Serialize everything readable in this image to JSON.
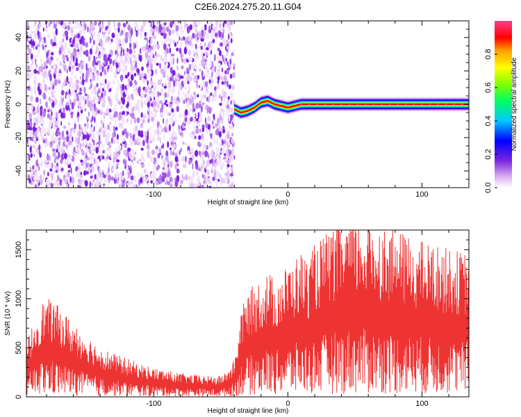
{
  "title": "C2E6.2024.275.20.11.G04",
  "chart_data": [
    {
      "type": "heatmap",
      "xlabel": "Height of straight line (km)",
      "ylabel": "Frequency (Hz)",
      "xlim": [
        -195,
        135
      ],
      "ylim": [
        -50,
        50
      ],
      "x_ticks": [
        -100,
        0,
        100
      ],
      "y_ticks": [
        -40,
        -20,
        0,
        20,
        40
      ],
      "noise_region_x": [
        -195,
        -40
      ],
      "signal_track": [
        {
          "x": -40,
          "y": -3
        },
        {
          "x": -35,
          "y": -5
        },
        {
          "x": -30,
          "y": -4
        },
        {
          "x": -25,
          "y": -2
        },
        {
          "x": -20,
          "y": 1
        },
        {
          "x": -15,
          "y": 2
        },
        {
          "x": -10,
          "y": 0
        },
        {
          "x": -5,
          "y": -1
        },
        {
          "x": 0,
          "y": -2
        },
        {
          "x": 5,
          "y": -1
        },
        {
          "x": 10,
          "y": 0
        },
        {
          "x": 135,
          "y": 0
        }
      ],
      "colorbar": {
        "label": "Normalized spectral amplitude",
        "range": [
          0,
          1
        ],
        "ticks": [
          "0.0",
          "0.2",
          "0.4",
          "0.6",
          "0.8"
        ]
      }
    },
    {
      "type": "line",
      "xlabel": "Height of straight line (km)",
      "ylabel": "SNR (10 * v/v)",
      "xlim": [
        -195,
        135
      ],
      "ylim": [
        0,
        1700
      ],
      "x_ticks": [
        -100,
        0,
        100
      ],
      "y_ticks": [
        0,
        500,
        1000,
        1500
      ],
      "series": [
        {
          "color": "#ee3333",
          "envelope": [
            {
              "x": -195,
              "y": 420
            },
            {
              "x": -185,
              "y": 700
            },
            {
              "x": -180,
              "y": 750
            },
            {
              "x": -170,
              "y": 680
            },
            {
              "x": -160,
              "y": 560
            },
            {
              "x": -150,
              "y": 470
            },
            {
              "x": -140,
              "y": 380
            },
            {
              "x": -130,
              "y": 330
            },
            {
              "x": -120,
              "y": 290
            },
            {
              "x": -110,
              "y": 250
            },
            {
              "x": -100,
              "y": 220
            },
            {
              "x": -90,
              "y": 200
            },
            {
              "x": -80,
              "y": 180
            },
            {
              "x": -70,
              "y": 170
            },
            {
              "x": -60,
              "y": 160
            },
            {
              "x": -50,
              "y": 160
            },
            {
              "x": -45,
              "y": 200
            },
            {
              "x": -40,
              "y": 280
            },
            {
              "x": -35,
              "y": 650
            },
            {
              "x": -30,
              "y": 800
            },
            {
              "x": -25,
              "y": 850
            },
            {
              "x": -20,
              "y": 900
            },
            {
              "x": -15,
              "y": 950
            },
            {
              "x": -10,
              "y": 900
            },
            {
              "x": -5,
              "y": 950
            },
            {
              "x": 0,
              "y": 1000
            },
            {
              "x": 5,
              "y": 1050
            },
            {
              "x": 10,
              "y": 1100
            },
            {
              "x": 15,
              "y": 1050
            },
            {
              "x": 20,
              "y": 1150
            },
            {
              "x": 30,
              "y": 1250
            },
            {
              "x": 40,
              "y": 1320
            },
            {
              "x": 50,
              "y": 1350
            },
            {
              "x": 60,
              "y": 1340
            },
            {
              "x": 70,
              "y": 1300
            },
            {
              "x": 80,
              "y": 1260
            },
            {
              "x": 90,
              "y": 1220
            },
            {
              "x": 100,
              "y": 1180
            },
            {
              "x": 110,
              "y": 1150
            },
            {
              "x": 120,
              "y": 1120
            },
            {
              "x": 130,
              "y": 1100
            },
            {
              "x": 135,
              "y": 1100
            }
          ]
        }
      ]
    }
  ]
}
